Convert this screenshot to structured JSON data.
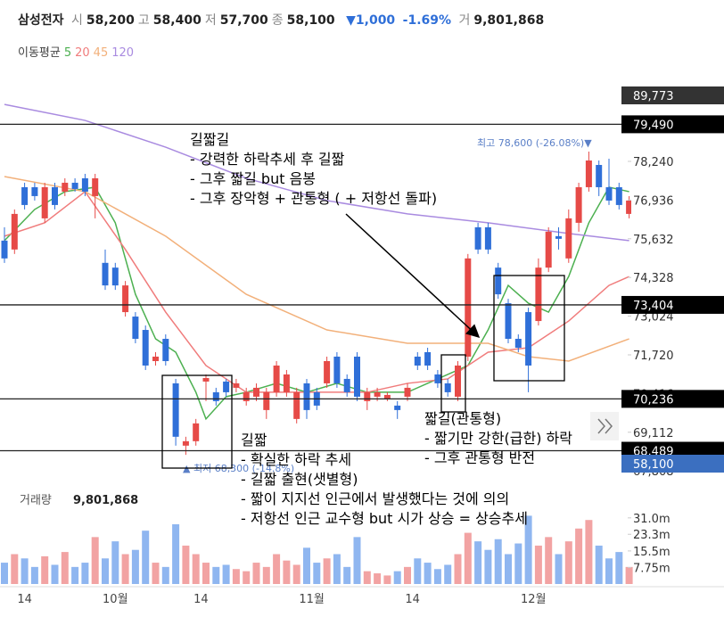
{
  "header": {
    "name": "삼성전자",
    "fields": [
      {
        "label": "시",
        "value": "58,200"
      },
      {
        "label": "고",
        "value": "58,400"
      },
      {
        "label": "저",
        "value": "57,700"
      },
      {
        "label": "종",
        "value": "58,100"
      }
    ],
    "change": "▼1,000",
    "change_pct": "-1.69%",
    "volume_label": "거",
    "volume_value": "9,801,868",
    "ma_title": "이동평균"
  },
  "chart_data": {
    "type": "candlestick",
    "ylim": [
      67453,
      80824
    ],
    "yticks": [
      {
        "value": 78240,
        "label": "78,240"
      },
      {
        "value": 76936,
        "label": "76,936"
      },
      {
        "value": 75632,
        "label": "75,632"
      },
      {
        "value": 74328,
        "label": "74,328"
      },
      {
        "value": 73024,
        "label": "73,024"
      },
      {
        "value": 71720,
        "label": "71,720"
      },
      {
        "value": 70416,
        "label": "70,416"
      },
      {
        "value": 69112,
        "label": "69,112"
      },
      {
        "value": 67808,
        "label": "67,808"
      }
    ],
    "xlabels": [
      {
        "index": 2,
        "label": "14"
      },
      {
        "index": 11,
        "label": "10월"
      },
      {
        "index": 19.5,
        "label": "14"
      },
      {
        "index": 30.5,
        "label": "11월"
      },
      {
        "index": 40.5,
        "label": "14"
      },
      {
        "index": 52.5,
        "label": "12월"
      }
    ],
    "up_color": "#e64a47",
    "down_color": "#2f6fd8",
    "open": [
      75570,
      75270,
      77370,
      77370,
      76320,
      77370,
      77220,
      77520,
      77670,
      77070,
      74820,
      74660,
      73160,
      73010,
      72560,
      71510,
      72260,
      70760,
      68660,
      68810,
      70820,
      70460,
      70820,
      70610,
      70160,
      70310,
      69860,
      70460,
      70460,
      69560,
      70760,
      70460,
      70760,
      71660,
      70910,
      71660,
      70160,
      70310,
      70250,
      70010,
      70310,
      71660,
      71810,
      71060,
      70760,
      70310,
      71660,
      76020,
      76020,
      74660,
      73460,
      72260,
      73160,
      72860,
      74660,
      75720,
      74970,
      76170,
      77370,
      78120,
      77370,
      77370,
      76470
    ],
    "high": [
      76020,
      76620,
      77520,
      77520,
      77520,
      77520,
      77670,
      77670,
      77820,
      77820,
      75270,
      74820,
      74210,
      73160,
      72710,
      71810,
      72410,
      70910,
      68960,
      69560,
      71060,
      70610,
      70910,
      70910,
      70610,
      70760,
      70610,
      71510,
      71210,
      70610,
      70910,
      70610,
      71660,
      71810,
      71060,
      71810,
      70610,
      70610,
      70460,
      70160,
      70760,
      71810,
      71960,
      71210,
      70910,
      71510,
      75120,
      76170,
      76170,
      74820,
      73610,
      72410,
      73310,
      74970,
      76020,
      76020,
      76620,
      77520,
      78570,
      78270,
      78330,
      77520,
      77070
    ],
    "low": [
      74820,
      75120,
      76620,
      76920,
      76170,
      76620,
      77070,
      77220,
      77070,
      76320,
      73910,
      73910,
      73010,
      72110,
      71210,
      71360,
      71360,
      68660,
      68350,
      68660,
      70160,
      70010,
      70310,
      70460,
      70010,
      70160,
      69560,
      70310,
      70310,
      69410,
      69560,
      69860,
      70610,
      70610,
      70310,
      70160,
      69860,
      70160,
      70160,
      69560,
      70160,
      71210,
      71210,
      70610,
      70310,
      70160,
      71510,
      75120,
      75120,
      73610,
      72110,
      71810,
      70460,
      72710,
      74510,
      75270,
      74820,
      75870,
      77220,
      77070,
      76770,
      76620,
      76320
    ],
    "close": [
      74970,
      76470,
      76770,
      77070,
      77370,
      76770,
      77520,
      77310,
      77220,
      77670,
      74060,
      74060,
      74060,
      72260,
      71360,
      71660,
      71510,
      68960,
      68810,
      69410,
      70940,
      70160,
      70460,
      70760,
      70460,
      70610,
      70460,
      71360,
      71060,
      70460,
      69860,
      70010,
      71510,
      70760,
      70460,
      70310,
      70460,
      70460,
      70370,
      69860,
      70610,
      71360,
      71360,
      70760,
      70460,
      71360,
      74970,
      75270,
      75270,
      73760,
      72260,
      71960,
      71360,
      74660,
      75870,
      75630,
      76320,
      77370,
      78270,
      77370,
      76920,
      76770,
      76920
    ],
    "ma_series": [
      {
        "name": "5",
        "color": "#4cb050",
        "x": [
          0,
          3,
          6,
          9,
          11,
          13,
          15,
          17,
          19,
          20,
          22,
          24,
          27,
          30,
          33,
          36,
          40,
          44,
          46,
          48,
          50,
          52,
          54,
          56,
          58,
          60,
          62
        ],
        "values": [
          75570,
          76620,
          77220,
          77370,
          76170,
          73760,
          72260,
          71810,
          70460,
          69560,
          70310,
          70460,
          70760,
          70460,
          70760,
          70460,
          70460,
          71060,
          71360,
          72560,
          74060,
          73460,
          73160,
          74360,
          76170,
          77370,
          77220
        ]
      },
      {
        "name": "20",
        "color": "#f07c7c",
        "x": [
          0,
          4,
          8,
          12,
          16,
          20,
          24,
          28,
          32,
          36,
          40,
          44,
          48,
          52,
          56,
          60,
          62
        ],
        "values": [
          75720,
          76170,
          77220,
          75270,
          73160,
          71360,
          70460,
          70460,
          70460,
          70460,
          70760,
          70910,
          71810,
          71960,
          72860,
          74060,
          74360
        ]
      },
      {
        "name": "45",
        "color": "#f2b07a",
        "x": [
          0,
          8,
          16,
          24,
          32,
          40,
          48,
          52,
          56,
          62
        ],
        "values": [
          77730,
          77220,
          75720,
          73760,
          72560,
          72110,
          72110,
          71660,
          71510,
          72260
        ]
      },
      {
        "name": "120",
        "color": "#a98be0",
        "x": [
          0,
          8,
          16,
          24,
          32,
          40,
          48,
          56,
          62
        ],
        "values": [
          80160,
          79620,
          78720,
          77670,
          76920,
          76470,
          76170,
          75810,
          75570
        ]
      }
    ],
    "price_lines": [
      {
        "value": 89773,
        "label": "89,773",
        "color": "#333333",
        "line": false
      },
      {
        "value": 79490,
        "label": "79,490",
        "color": "#000000",
        "line": true
      },
      {
        "value": 73404,
        "label": "73,404",
        "color": "#000000",
        "line": true
      },
      {
        "value": 70236,
        "label": "70,236",
        "color": "#000000",
        "line": true
      },
      {
        "value": 68489,
        "label": "68,489",
        "color": "#000000",
        "line": true
      },
      {
        "value": 58100,
        "label": "58,100",
        "color": "#3b6fc0",
        "line": false
      }
    ],
    "max_label": "최고 78,600 (-26.08%)▼",
    "min_label": "▲ 최저 68,300 (-14.8%)",
    "volume": {
      "title": "거래량",
      "value_text": "9,801,868",
      "ylim": [
        0,
        39.7
      ],
      "yticks": [
        {
          "value": 7.75,
          "label": "7.75m"
        },
        {
          "value": 15.5,
          "label": "15.5m"
        },
        {
          "value": 23.3,
          "label": "23.3m"
        },
        {
          "value": 31.0,
          "label": "31.0m"
        }
      ],
      "up_color": "#f2a3a3",
      "down_color": "#8fb6f0",
      "values": [
        10,
        14,
        12,
        8,
        13,
        9,
        15,
        8,
        10,
        22,
        12,
        20,
        14,
        16,
        25,
        10,
        8,
        28,
        18,
        14,
        10,
        8,
        9,
        7,
        6,
        10,
        8,
        14,
        11,
        9,
        17,
        10,
        12,
        14,
        8,
        22,
        6,
        5,
        4,
        6,
        8,
        12,
        10,
        7,
        9,
        14,
        24,
        20,
        16,
        21,
        14,
        19,
        32,
        18,
        22,
        14,
        20,
        26,
        30,
        18,
        12,
        15,
        8
      ]
    }
  },
  "annotations": [
    {
      "title": "길짧길",
      "lines": [
        "- 강력한 하락추세 후 길짧",
        "- 그후 짧길 but 음봉",
        "- 그후 장악형 + 관통형 ( + 저항선 돌파)"
      ]
    },
    {
      "title": "길짧",
      "lines": [
        "- 확실한 하락 추세",
        "- 길짧 출현(샛별형)",
        "- 짧이 지지선 인근에서 발생했다는 것에 의의",
        "- 저항선 인근 교수형 but 시가 상승 = 상승추세"
      ]
    },
    {
      "title": "짧길(관통형)",
      "lines": [
        "- 짧기만 강한(급한) 하락",
        "- 그후 관통형 반전"
      ]
    }
  ]
}
